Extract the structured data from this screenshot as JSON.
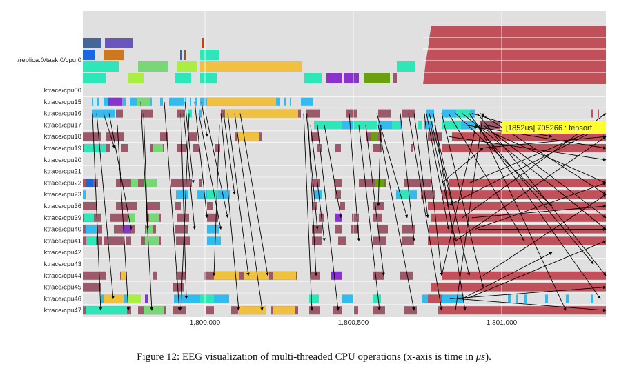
{
  "task_label": "/replica:0/task:0/cpu:0",
  "cpu_rows": [
    "ktrace/cpu00",
    "ktrace/cpu15",
    "ktrace/cpu16",
    "ktrace/cpu17",
    "ktrace/cpu18",
    "ktrace/cpu19",
    "ktrace/cpu20",
    "ktrace/cpu21",
    "ktrace/cpu22",
    "ktrace/cpu23",
    "ktrace/cpu36",
    "ktrace/cpu39",
    "ktrace/cpu40",
    "ktrace/cpu41",
    "ktrace/cpu42",
    "ktrace/cpu43",
    "ktrace/cpu44",
    "ktrace/cpu45",
    "ktrace/cpu46",
    "ktrace/cpu47"
  ],
  "axis": {
    "ticks": [
      {
        "value": 1800000,
        "label": "1,800,000"
      },
      {
        "value": 1800500,
        "label": "1,800,500"
      },
      {
        "value": 1801000,
        "label": "1,801,000"
      }
    ]
  },
  "tooltip": {
    "text": "[1852us] 705266 : tensorf"
  },
  "caption": {
    "prefix": "Figure 12: EEG visualization of multi-threaded CPU operations (x-axis is time in ",
    "unit": "μs",
    "suffix": ")."
  },
  "colors": {
    "background": "#e0e0e0",
    "crimson": "#c0505a",
    "mauve": "#9a5a6a",
    "cyan": "#33bbee",
    "teal": "#2ee6b8",
    "orange": "#f0c040",
    "green": "#78d878",
    "purple": "#8833cc",
    "olive": "#6aa010",
    "blue": "#1a66dd",
    "yellow": "#ffff33"
  }
}
